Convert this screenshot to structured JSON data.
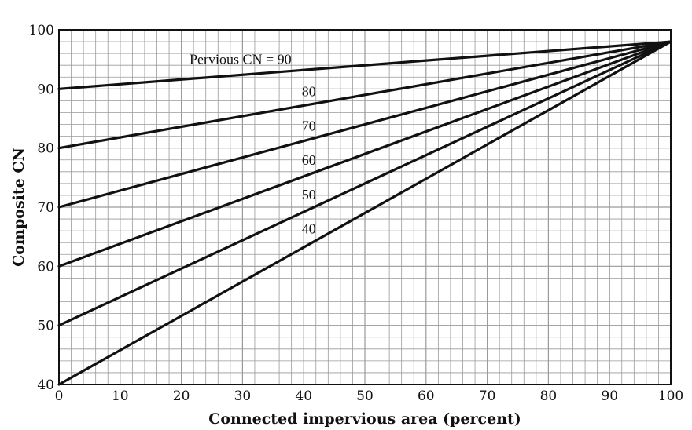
{
  "chart_data": {
    "type": "line",
    "title": "",
    "xlabel": "Connected impervious area (percent)",
    "ylabel": "Composite CN",
    "xlim": [
      0,
      100
    ],
    "ylim": [
      40,
      100
    ],
    "x_ticks": [
      "0",
      "10",
      "20",
      "30",
      "40",
      "50",
      "60",
      "70",
      "80",
      "90",
      "100"
    ],
    "y_ticks": [
      "40",
      "50",
      "60",
      "70",
      "80",
      "90",
      "100"
    ],
    "grid": true,
    "legend": "none",
    "series": [
      {
        "name": "Pervious CN = 90",
        "x": [
          0,
          100
        ],
        "y": [
          90,
          98
        ]
      },
      {
        "name": "80",
        "x": [
          0,
          100
        ],
        "y": [
          80,
          98
        ]
      },
      {
        "name": "70",
        "x": [
          0,
          100
        ],
        "y": [
          70,
          98
        ]
      },
      {
        "name": "60",
        "x": [
          0,
          100
        ],
        "y": [
          60,
          98
        ]
      },
      {
        "name": "50",
        "x": [
          0,
          100
        ],
        "y": [
          50,
          98
        ]
      },
      {
        "name": "40",
        "x": [
          0,
          100
        ],
        "y": [
          40,
          98
        ]
      }
    ],
    "colors": {
      "line": "#111111",
      "grid": "#9a9a9a",
      "frame": "#111111"
    }
  }
}
